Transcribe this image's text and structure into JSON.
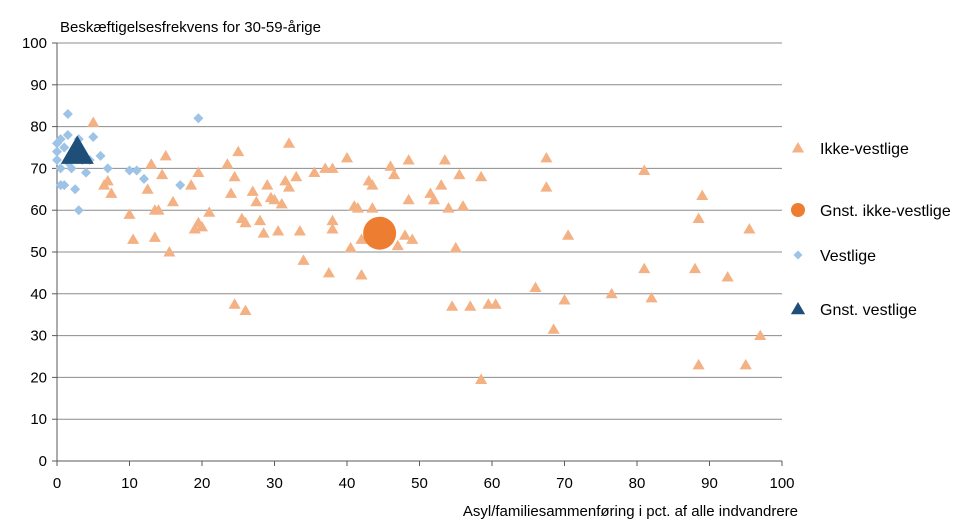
{
  "chart_data": {
    "type": "scatter",
    "title": "Beskæftigelsesfrekvens for 30-59-årige",
    "xlabel": "Asyl/familiesammenføring i pct. af alle indvandrere",
    "ylabel": "",
    "xlim": [
      0,
      100
    ],
    "ylim": [
      0,
      100
    ],
    "x_ticks": [
      "0",
      "10",
      "20",
      "30",
      "40",
      "50",
      "60",
      "70",
      "80",
      "90",
      "100"
    ],
    "y_ticks": [
      "0",
      "10",
      "20",
      "30",
      "40",
      "50",
      "60",
      "70",
      "80",
      "90",
      "100"
    ],
    "grid": "horizontal",
    "legend_position": "right",
    "series": [
      {
        "name": "Ikke-vestlige",
        "marker": "triangle",
        "color": "#f4b183",
        "points": [
          [
            5,
            81
          ],
          [
            6.5,
            66
          ],
          [
            7,
            67
          ],
          [
            7.5,
            64
          ],
          [
            10,
            59
          ],
          [
            10.5,
            53
          ],
          [
            12.5,
            65
          ],
          [
            13,
            71
          ],
          [
            13.5,
            60
          ],
          [
            14,
            60
          ],
          [
            13.5,
            53.5
          ],
          [
            14.5,
            68.5
          ],
          [
            15,
            73
          ],
          [
            15.5,
            50
          ],
          [
            16,
            62
          ],
          [
            18.5,
            66
          ],
          [
            19,
            55.5
          ],
          [
            19.5,
            57
          ],
          [
            19.5,
            69
          ],
          [
            20,
            56
          ],
          [
            21,
            59.5
          ],
          [
            23.5,
            71
          ],
          [
            24,
            64
          ],
          [
            24.5,
            68
          ],
          [
            25,
            74
          ],
          [
            25.5,
            58
          ],
          [
            26,
            57
          ],
          [
            27,
            64.5
          ],
          [
            27.5,
            62
          ],
          [
            28,
            57.5
          ],
          [
            28.5,
            54.5
          ],
          [
            29,
            66
          ],
          [
            29.5,
            63
          ],
          [
            30,
            62.5
          ],
          [
            30.5,
            55
          ],
          [
            31,
            61.5
          ],
          [
            31.5,
            67
          ],
          [
            32,
            76
          ],
          [
            32,
            65.5
          ],
          [
            33,
            68
          ],
          [
            34,
            48
          ],
          [
            33.5,
            55
          ],
          [
            35.5,
            69
          ],
          [
            37,
            70
          ],
          [
            37.5,
            45
          ],
          [
            38,
            57.5
          ],
          [
            38,
            55.5
          ],
          [
            38,
            70
          ],
          [
            40,
            72.5
          ],
          [
            40.5,
            51
          ],
          [
            41,
            61
          ],
          [
            41.5,
            60.5
          ],
          [
            42,
            44.5
          ],
          [
            42,
            53
          ],
          [
            43,
            67
          ],
          [
            43.5,
            66
          ],
          [
            44,
            55
          ],
          [
            43.5,
            60.5
          ],
          [
            46,
            70.5
          ],
          [
            46.5,
            68.5
          ],
          [
            47,
            51.5
          ],
          [
            48.5,
            72
          ],
          [
            48.5,
            62.5
          ],
          [
            49,
            53
          ],
          [
            48,
            54
          ],
          [
            51.5,
            64
          ],
          [
            52,
            62.5
          ],
          [
            53,
            66
          ],
          [
            53.5,
            72
          ],
          [
            54,
            60.5
          ],
          [
            55,
            51
          ],
          [
            55.5,
            68.5
          ],
          [
            54.5,
            37
          ],
          [
            56,
            61
          ],
          [
            57,
            37
          ],
          [
            58.5,
            68
          ],
          [
            58.5,
            19.5
          ],
          [
            59.5,
            37.5
          ],
          [
            60.5,
            37.5
          ],
          [
            66,
            41.5
          ],
          [
            67.5,
            65.5
          ],
          [
            67.5,
            72.5
          ],
          [
            68.5,
            31.5
          ],
          [
            70,
            38.5
          ],
          [
            70.5,
            54
          ],
          [
            76.5,
            40
          ],
          [
            81,
            69.5
          ],
          [
            81,
            46
          ],
          [
            82,
            39
          ],
          [
            88,
            46
          ],
          [
            88.5,
            58
          ],
          [
            88.5,
            23
          ],
          [
            89,
            63.5
          ],
          [
            92.5,
            44
          ],
          [
            95,
            23
          ],
          [
            95.5,
            55.5
          ],
          [
            97,
            30
          ],
          [
            24.5,
            37.5
          ],
          [
            26,
            36
          ]
        ]
      },
      {
        "name": "Gnst. ikke-vestlige",
        "marker": "circle",
        "color": "#ed7d31",
        "points": [
          [
            44.5,
            54.5
          ]
        ]
      },
      {
        "name": "Vestlige",
        "marker": "diamond",
        "color": "#9dc3e6",
        "points": [
          [
            0,
            72
          ],
          [
            0,
            74
          ],
          [
            0,
            76
          ],
          [
            0.5,
            77
          ],
          [
            0.5,
            70
          ],
          [
            1,
            66
          ],
          [
            0.5,
            66
          ],
          [
            1,
            75
          ],
          [
            1.5,
            78
          ],
          [
            1.5,
            83
          ],
          [
            1.5,
            71.5
          ],
          [
            2,
            73
          ],
          [
            2,
            72
          ],
          [
            2,
            70
          ],
          [
            2.5,
            65
          ],
          [
            2.5,
            74.5
          ],
          [
            3,
            60
          ],
          [
            3,
            77
          ],
          [
            3.5,
            72
          ],
          [
            4,
            69
          ],
          [
            4.5,
            72
          ],
          [
            5,
            77.5
          ],
          [
            6,
            73
          ],
          [
            7,
            70
          ],
          [
            10,
            69.5
          ],
          [
            11,
            69.5
          ],
          [
            12,
            67.5
          ],
          [
            17,
            66
          ],
          [
            19.5,
            82
          ]
        ]
      },
      {
        "name": "Gnst. vestlige",
        "marker": "triangle",
        "color": "#1f4e79",
        "points": [
          [
            2.8,
            74
          ]
        ]
      }
    ]
  }
}
